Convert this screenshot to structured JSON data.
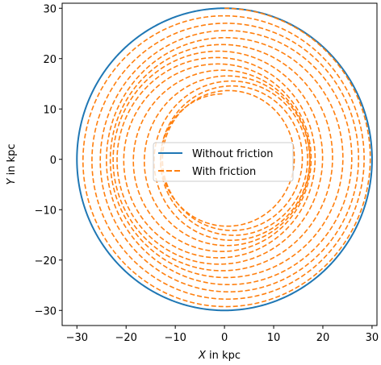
{
  "chart_data": {
    "type": "line",
    "title": "",
    "xlabel_var": "X",
    "xlabel_unit": " in kpc",
    "ylabel_var": "Y",
    "ylabel_unit": " in kpc",
    "xlim": [
      -33,
      31
    ],
    "ylim": [
      -33,
      31
    ],
    "xticks": [
      -30,
      -20,
      -10,
      0,
      10,
      20,
      30
    ],
    "yticks": [
      -30,
      -20,
      -10,
      0,
      10,
      20,
      30
    ],
    "xtick_labels": [
      "−30",
      "−20",
      "−10",
      "0",
      "10",
      "20",
      "30"
    ],
    "ytick_labels": [
      "−30",
      "−20",
      "−10",
      "0",
      "10",
      "20",
      "30"
    ],
    "grid": false,
    "legend_position": "center",
    "series": [
      {
        "name": "Without friction",
        "style": "solid",
        "color": "#1f77b4",
        "orbit": {
          "kind": "circle",
          "radius": 30
        }
      },
      {
        "name": "With friction",
        "style": "dashed",
        "color": "#ff7f0e",
        "orbit": {
          "kind": "decaying_ellipse",
          "start_radius": 30,
          "end_radius": 13,
          "turns": 14,
          "center": [
            0,
            0
          ]
        }
      }
    ]
  }
}
